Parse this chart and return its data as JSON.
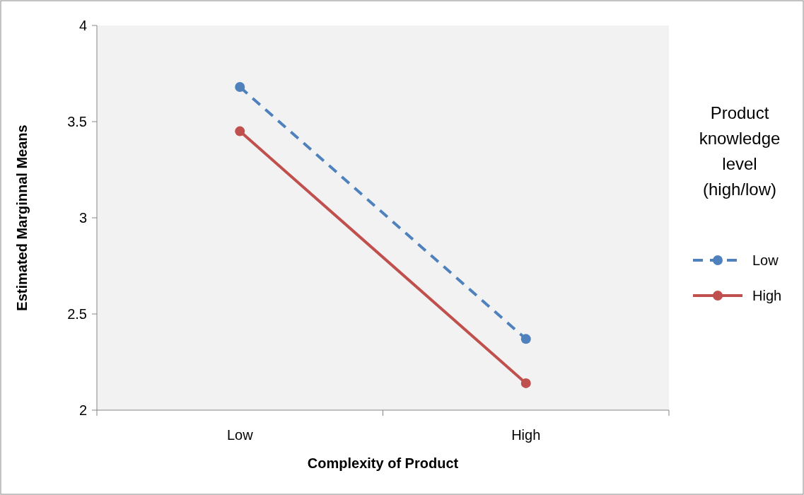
{
  "chart_data": {
    "type": "line",
    "xlabel": "Complexity of Product",
    "ylabel": "Estimated Marginnal Means",
    "legend_title": "Product knowledge level (high/low)",
    "categories": [
      "Low",
      "High"
    ],
    "series": [
      {
        "name": "Low",
        "color": "#4f81bd",
        "values": [
          3.68,
          2.37
        ],
        "line_style": "dashed"
      },
      {
        "name": "High",
        "color": "#c0504d",
        "values": [
          3.45,
          2.14
        ],
        "line_style": "solid"
      }
    ],
    "ylim": [
      2,
      4
    ],
    "yticks": [
      2,
      2.5,
      3,
      3.5,
      4
    ],
    "grid": false,
    "legend": "right",
    "marker": "circle"
  }
}
